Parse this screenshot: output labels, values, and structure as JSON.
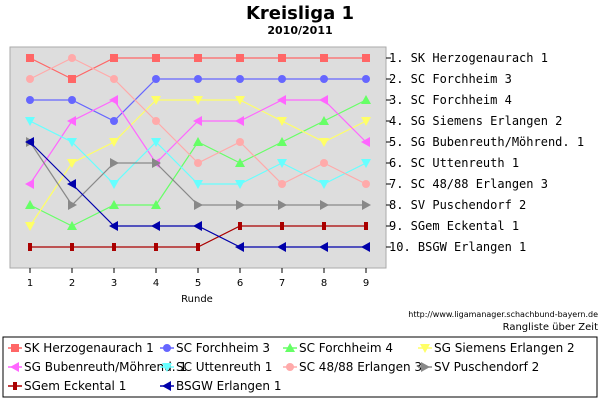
{
  "chart_data": {
    "type": "line",
    "title": "Kreisliga 1",
    "subtitle": "2010/2011",
    "xlabel": "Runde",
    "x": [
      1,
      2,
      3,
      4,
      5,
      6,
      7,
      8,
      9
    ],
    "ylim": [
      1,
      10
    ],
    "y_inverted": true,
    "grid": false,
    "legend_position": "bottom",
    "right_labels": [
      "1. SK Herzogenaurach 1",
      "2. SC Forchheim 3",
      "3. SC Forchheim 4",
      "4. SG Siemens Erlangen 2",
      "5. SG Bubenreuth/Möhrend. 1",
      "6. SC Uttenreuth 1",
      "7. SC 48/88 Erlangen 3",
      "8. SV Puschendorf 2",
      "9. SGem Eckental 1",
      "10. BSGW Erlangen 1"
    ],
    "source_url": "http://www.ligamanager.schachbund-bayern.de",
    "footer_label": "Rangliste über Zeit",
    "series": [
      {
        "name": "SK Herzogenaurach 1",
        "color": "#ff6666",
        "marker": "square",
        "values": [
          1,
          2,
          1,
          1,
          1,
          1,
          1,
          1,
          1
        ]
      },
      {
        "name": "SC Forchheim 3",
        "color": "#6666ff",
        "marker": "circle",
        "values": [
          3,
          3,
          4,
          2,
          2,
          2,
          2,
          2,
          2
        ]
      },
      {
        "name": "SC Forchheim 4",
        "color": "#66ff66",
        "marker": "triangle-up",
        "values": [
          8,
          9,
          8,
          8,
          5,
          6,
          5,
          4,
          3
        ]
      },
      {
        "name": "SG Siemens Erlangen 2",
        "color": "#ffff66",
        "marker": "triangle-down",
        "values": [
          9,
          6,
          5,
          3,
          3,
          3,
          4,
          5,
          4
        ]
      },
      {
        "name": "SG Bubenreuth/Möhrend. 1",
        "color": "#ff66ff",
        "marker": "triangle-left",
        "values": [
          7,
          4,
          3,
          6,
          4,
          4,
          3,
          3,
          5
        ]
      },
      {
        "name": "SC Uttenreuth 1",
        "color": "#66ffff",
        "marker": "triangle-down",
        "values": [
          4,
          5,
          7,
          5,
          7,
          7,
          6,
          7,
          6
        ]
      },
      {
        "name": "SC 48/88 Erlangen 3",
        "color": "#ffaaaa",
        "marker": "circle",
        "values": [
          2,
          1,
          2,
          4,
          6,
          5,
          7,
          6,
          7
        ]
      },
      {
        "name": "SV Puschendorf 2",
        "color": "#888888",
        "marker": "triangle-right",
        "values": [
          5,
          8,
          6,
          6,
          8,
          8,
          8,
          8,
          8
        ]
      },
      {
        "name": "SGem Eckental 1",
        "color": "#aa0000",
        "marker": "tick",
        "values": [
          10,
          10,
          10,
          10,
          10,
          9,
          9,
          9,
          9
        ]
      },
      {
        "name": "BSGW Erlangen 1",
        "color": "#0000aa",
        "marker": "triangle-left",
        "values": [
          5,
          7,
          9,
          9,
          9,
          10,
          10,
          10,
          10
        ]
      }
    ]
  }
}
